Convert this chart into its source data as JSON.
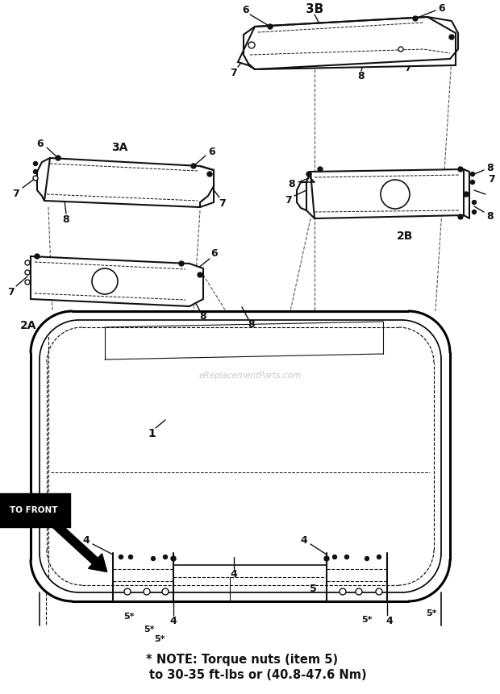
{
  "bg_color": "#ffffff",
  "line_color": "#111111",
  "note_line1": "* NOTE: Torque nuts (item 5)",
  "note_line2": "to 30-35 ft-lbs or (40.8-47.6 Nm)",
  "watermark": "eReplacementParts.com",
  "label_3B": "3B",
  "label_3A": "3A",
  "label_2A": "2A",
  "label_2B": "2B",
  "label_1": "1",
  "label_4": "4",
  "label_5star": "5*",
  "label_5": "5",
  "label_6": "6",
  "label_7": "7",
  "label_8": "8",
  "to_front": "TO FRONT"
}
